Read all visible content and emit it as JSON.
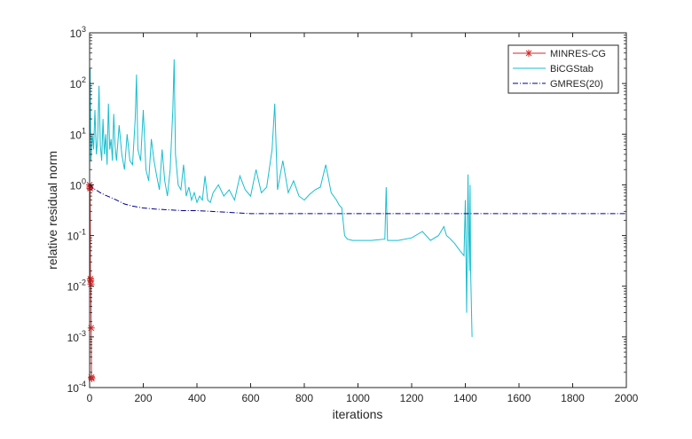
{
  "chart_data": {
    "type": "line",
    "title": "",
    "xlabel": "iterations",
    "ylabel": "relative residual norm",
    "xlim": [
      0,
      2000
    ],
    "ylim": [
      0.0001,
      1000
    ],
    "yscale": "log",
    "grid": false,
    "legend_position": "top-right",
    "x_ticks": [
      "0",
      "200",
      "400",
      "600",
      "800",
      "1000",
      "1200",
      "1400",
      "1600",
      "1800",
      "2000"
    ],
    "y_ticks": [
      {
        "base": "10",
        "exp": "3"
      },
      {
        "base": "10",
        "exp": "2"
      },
      {
        "base": "10",
        "exp": "1"
      },
      {
        "base": "10",
        "exp": "0"
      },
      {
        "base": "10",
        "exp": "-1"
      },
      {
        "base": "10",
        "exp": "-2"
      },
      {
        "base": "10",
        "exp": "-3"
      },
      {
        "base": "10",
        "exp": "-4"
      }
    ],
    "series": [
      {
        "name": "MINRES-CG",
        "color": "#d62728",
        "line_style": "solid",
        "marker": "asterisk",
        "x": [
          0,
          1,
          2,
          3,
          4,
          5,
          6,
          7,
          8
        ],
        "y": [
          1.0,
          0.9,
          0.85,
          0.014,
          0.013,
          0.011,
          0.0015,
          0.00016,
          0.00015
        ]
      },
      {
        "name": "BiCGStab",
        "color": "#17becf",
        "line_style": "solid",
        "marker": "none",
        "x": [
          0,
          2,
          5,
          10,
          15,
          20,
          25,
          30,
          35,
          40,
          45,
          50,
          55,
          60,
          65,
          70,
          75,
          80,
          85,
          90,
          95,
          100,
          110,
          120,
          130,
          140,
          150,
          160,
          170,
          175,
          180,
          190,
          200,
          210,
          220,
          230,
          240,
          250,
          260,
          270,
          280,
          290,
          300,
          310,
          315,
          320,
          330,
          340,
          350,
          360,
          370,
          380,
          390,
          400,
          410,
          420,
          430,
          440,
          450,
          460,
          480,
          500,
          520,
          540,
          560,
          580,
          600,
          620,
          640,
          660,
          680,
          690,
          700,
          720,
          740,
          760,
          780,
          800,
          820,
          840,
          860,
          880,
          900,
          920,
          930,
          940,
          950,
          960,
          980,
          1000,
          1050,
          1100,
          1105,
          1110,
          1150,
          1200,
          1240,
          1270,
          1300,
          1320,
          1330,
          1340,
          1360,
          1380,
          1395,
          1400,
          1405,
          1410,
          1415,
          1418,
          1420,
          1425
        ],
        "y": [
          2.0,
          200,
          3.0,
          10,
          5,
          30,
          4,
          8,
          90,
          6,
          3,
          20,
          4,
          10,
          2.5,
          40,
          5,
          8,
          3,
          25,
          6,
          3,
          15,
          4,
          2,
          10,
          3,
          2.5,
          20,
          150,
          5,
          3,
          30,
          2,
          1.2,
          8,
          3,
          1.5,
          0.8,
          5,
          1.2,
          0.6,
          2,
          30,
          300,
          4,
          1.0,
          0.8,
          2.5,
          0.6,
          0.9,
          0.5,
          0.7,
          0.45,
          0.6,
          0.5,
          1.5,
          0.5,
          0.45,
          0.7,
          1.0,
          0.6,
          0.8,
          0.5,
          1.5,
          0.8,
          0.6,
          2.0,
          0.7,
          0.9,
          5,
          40,
          0.8,
          3,
          0.7,
          1.2,
          0.6,
          0.5,
          0.65,
          0.8,
          0.9,
          2.5,
          0.7,
          0.5,
          0.4,
          0.35,
          0.1,
          0.085,
          0.08,
          0.08,
          0.08,
          0.085,
          0.9,
          0.08,
          0.08,
          0.09,
          0.12,
          0.08,
          0.1,
          0.15,
          0.1,
          0.09,
          0.07,
          0.05,
          0.04,
          0.5,
          0.003,
          1.6,
          0.02,
          1.0,
          0.02,
          0.001
        ]
      },
      {
        "name": "GMRES(20)",
        "color": "#00008b",
        "line_style": "dashdot",
        "marker": "none",
        "x": [
          0,
          5,
          10,
          20,
          40,
          60,
          80,
          100,
          130,
          160,
          200,
          250,
          300,
          350,
          400,
          450,
          500,
          550,
          600,
          650,
          700,
          800,
          1000,
          1200,
          1400,
          1600,
          1800,
          2000
        ],
        "y": [
          0.97,
          1.0,
          0.88,
          0.82,
          0.7,
          0.62,
          0.56,
          0.5,
          0.42,
          0.38,
          0.35,
          0.33,
          0.32,
          0.31,
          0.31,
          0.3,
          0.29,
          0.28,
          0.27,
          0.27,
          0.27,
          0.27,
          0.27,
          0.27,
          0.27,
          0.27,
          0.27,
          0.27
        ]
      }
    ]
  }
}
